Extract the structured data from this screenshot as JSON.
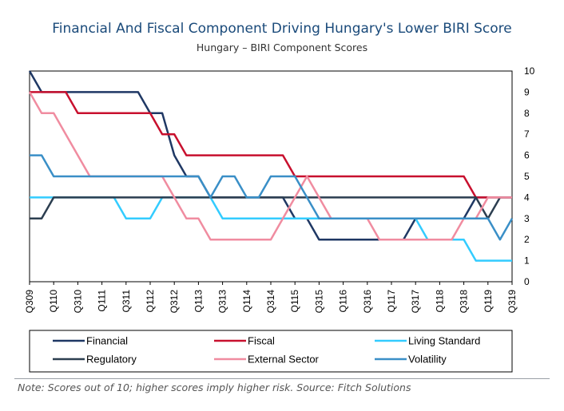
{
  "chart_data": {
    "type": "line",
    "title": "Financial And Fiscal Component Driving Hungary's Lower BIRI Score",
    "subtitle": "Hungary – BIRI Component Scores",
    "xlabel": "",
    "ylabel": "",
    "ylim": [
      0,
      10
    ],
    "y_ticks": [
      "0",
      "1",
      "2",
      "3",
      "4",
      "5",
      "6",
      "7",
      "8",
      "9",
      "10"
    ],
    "y_axis_side": "right",
    "grid": false,
    "legend_position": "bottom",
    "tick_labels": [
      "Q309",
      "Q110",
      "Q310",
      "Q111",
      "Q311",
      "Q112",
      "Q312",
      "Q113",
      "Q313",
      "Q114",
      "Q314",
      "Q115",
      "Q315",
      "Q116",
      "Q316",
      "Q117",
      "Q317",
      "Q118",
      "Q318",
      "Q119",
      "Q319"
    ],
    "x": [
      "Q309",
      "Q409",
      "Q110",
      "Q210",
      "Q310",
      "Q410",
      "Q111",
      "Q211",
      "Q311",
      "Q411",
      "Q112",
      "Q212",
      "Q312",
      "Q412",
      "Q113",
      "Q213",
      "Q313",
      "Q413",
      "Q114",
      "Q214",
      "Q314",
      "Q414",
      "Q115",
      "Q215",
      "Q315",
      "Q415",
      "Q116",
      "Q216",
      "Q316",
      "Q416",
      "Q117",
      "Q217",
      "Q317",
      "Q417",
      "Q118",
      "Q218",
      "Q318",
      "Q418",
      "Q119",
      "Q219",
      "Q319"
    ],
    "series": [
      {
        "name": "Financial",
        "color": "#1f3864",
        "values": [
          10,
          9,
          9,
          9,
          9,
          9,
          9,
          9,
          9,
          9,
          8,
          8,
          6,
          5,
          5,
          4,
          4,
          4,
          4,
          4,
          4,
          4,
          3,
          3,
          2,
          2,
          2,
          2,
          2,
          2,
          2,
          2,
          3,
          3,
          3,
          3,
          3,
          4,
          4,
          4,
          4
        ]
      },
      {
        "name": "Fiscal",
        "color": "#c8102e",
        "values": [
          9,
          9,
          9,
          9,
          8,
          8,
          8,
          8,
          8,
          8,
          8,
          7,
          7,
          6,
          6,
          6,
          6,
          6,
          6,
          6,
          6,
          6,
          5,
          5,
          5,
          5,
          5,
          5,
          5,
          5,
          5,
          5,
          5,
          5,
          5,
          5,
          5,
          4,
          4,
          4,
          4
        ]
      },
      {
        "name": "Living Standard",
        "color": "#33ccff",
        "values": [
          4,
          4,
          4,
          4,
          4,
          4,
          4,
          4,
          3,
          3,
          3,
          4,
          4,
          4,
          4,
          4,
          3,
          3,
          3,
          3,
          3,
          3,
          3,
          3,
          3,
          3,
          3,
          3,
          3,
          3,
          3,
          3,
          3,
          2,
          2,
          2,
          2,
          1,
          1,
          1,
          1
        ]
      },
      {
        "name": "Regulatory",
        "color": "#2c3e50",
        "values": [
          3,
          3,
          4,
          4,
          4,
          4,
          4,
          4,
          4,
          4,
          4,
          4,
          4,
          4,
          4,
          4,
          4,
          4,
          4,
          4,
          4,
          4,
          4,
          4,
          4,
          4,
          4,
          4,
          4,
          4,
          4,
          4,
          4,
          4,
          4,
          4,
          4,
          4,
          3,
          4,
          4
        ]
      },
      {
        "name": "External Sector",
        "color": "#f08ca0",
        "values": [
          9,
          8,
          8,
          7,
          6,
          5,
          5,
          5,
          5,
          5,
          5,
          5,
          4,
          3,
          3,
          2,
          2,
          2,
          2,
          2,
          2,
          3,
          4,
          5,
          4,
          3,
          3,
          3,
          3,
          2,
          2,
          2,
          2,
          2,
          2,
          2,
          3,
          3,
          4,
          4,
          4
        ]
      },
      {
        "name": "Volatility",
        "color": "#3a8fc7",
        "values": [
          6,
          6,
          5,
          5,
          5,
          5,
          5,
          5,
          5,
          5,
          5,
          5,
          5,
          5,
          5,
          4,
          5,
          5,
          4,
          4,
          5,
          5,
          5,
          4,
          3,
          3,
          3,
          3,
          3,
          3,
          3,
          3,
          3,
          3,
          3,
          3,
          3,
          3,
          3,
          2,
          3
        ]
      }
    ]
  },
  "note": "Note: Scores out of 10; higher scores imply higher risk. Source: Fitch Solutions"
}
